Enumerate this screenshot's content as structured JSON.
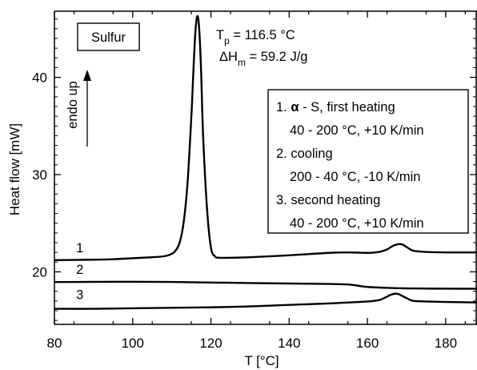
{
  "chart_data": {
    "type": "line",
    "xlabel": "T [°C]",
    "ylabel": "Heat flow [mW]",
    "xlim": [
      80,
      188
    ],
    "ylim": [
      14.6,
      46.8
    ],
    "x_ticks": [
      80,
      100,
      120,
      140,
      160,
      180
    ],
    "y_ticks": [
      20,
      30,
      40
    ],
    "grid": false,
    "series": [
      {
        "name": "1",
        "x": [
          80,
          90,
          95,
          100,
          105,
          108,
          110,
          111,
          112,
          113,
          114,
          115,
          115.5,
          116,
          116.5,
          117,
          117.5,
          118,
          119,
          120,
          121,
          122,
          125,
          130,
          140,
          150,
          155,
          160,
          163,
          165,
          166,
          167,
          168,
          169,
          170,
          171,
          172,
          175,
          180,
          188
        ],
        "y": [
          21.2,
          21.25,
          21.3,
          21.4,
          21.5,
          21.6,
          21.85,
          22.2,
          23.0,
          25.0,
          29.0,
          36.0,
          40.5,
          44.5,
          46.3,
          45.0,
          40.5,
          34.0,
          26.5,
          22.5,
          21.6,
          21.45,
          21.45,
          21.5,
          21.7,
          21.95,
          22.0,
          21.95,
          22.05,
          22.3,
          22.55,
          22.75,
          22.85,
          22.8,
          22.55,
          22.3,
          22.15,
          22.05,
          22.0,
          22.0
        ]
      },
      {
        "name": "2",
        "x": [
          80,
          90,
          100,
          110,
          120,
          130,
          140,
          150,
          155,
          158,
          160,
          165,
          170,
          175,
          180,
          188
        ],
        "y": [
          18.95,
          18.97,
          18.98,
          18.96,
          18.9,
          18.85,
          18.8,
          18.75,
          18.7,
          18.55,
          18.45,
          18.35,
          18.3,
          18.28,
          18.27,
          18.26
        ]
      },
      {
        "name": "3",
        "x": [
          80,
          90,
          100,
          110,
          120,
          130,
          140,
          150,
          155,
          160,
          163,
          164,
          165,
          166,
          167,
          168,
          169,
          170,
          171,
          172,
          175,
          180,
          188
        ],
        "y": [
          16.2,
          16.2,
          16.25,
          16.3,
          16.35,
          16.45,
          16.6,
          16.75,
          16.85,
          16.95,
          17.1,
          17.25,
          17.45,
          17.65,
          17.75,
          17.7,
          17.5,
          17.3,
          17.1,
          17.0,
          16.95,
          16.9,
          16.85
        ]
      }
    ],
    "curve_labels": [
      {
        "text": "1",
        "x": 86.5,
        "y": 22.0
      },
      {
        "text": "2",
        "x": 86.5,
        "y": 19.8
      },
      {
        "text": "3",
        "x": 86.5,
        "y": 17.2
      }
    ],
    "sample_box": {
      "text": "Sulfur"
    },
    "peak_annotation": {
      "tp_prefix": "T",
      "tp_sub": "p",
      "tp_value": " = 116.5 °C",
      "dh_prefix": "ΔH",
      "dh_sub": "m",
      "dh_value": " = 59.2 J/g"
    },
    "endo_label": "endo up",
    "legend": {
      "placement": "right",
      "lines": [
        {
          "prefix": "1. ",
          "bold": "α",
          "rest": " - S, first heating"
        },
        {
          "prefix": "",
          "bold": "",
          "rest": "40 - 200 °C, +10 K/min"
        },
        {
          "prefix": "2. ",
          "bold": "",
          "rest": "cooling"
        },
        {
          "prefix": "",
          "bold": "",
          "rest": "200 - 40 °C, -10 K/min"
        },
        {
          "prefix": "3. ",
          "bold": "",
          "rest": "second heating"
        },
        {
          "prefix": "",
          "bold": "",
          "rest": "40 - 200 °C, +10 K/min"
        }
      ]
    }
  }
}
